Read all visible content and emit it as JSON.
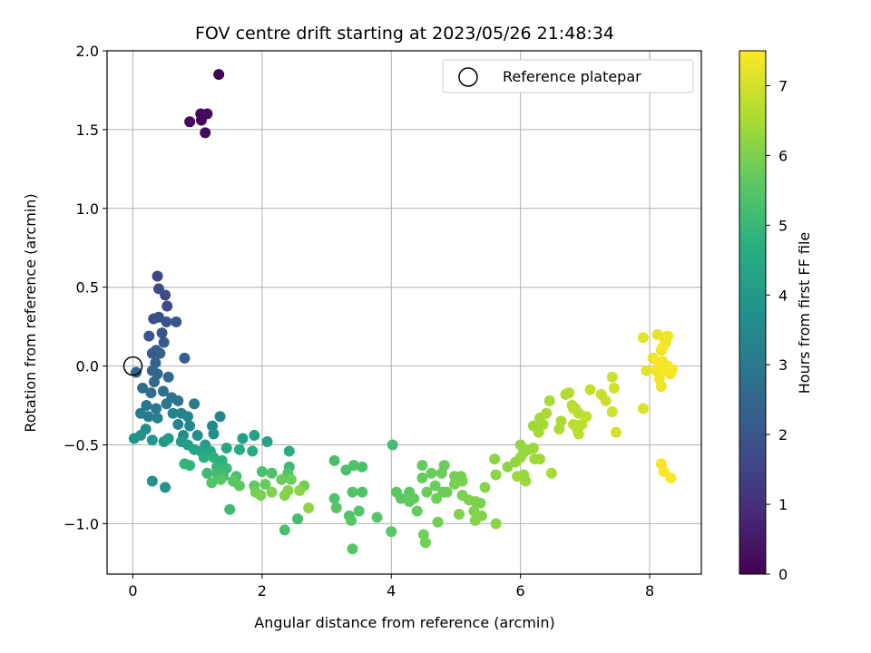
{
  "chart_data": {
    "type": "scatter",
    "title": "FOV centre drift starting at 2023/05/26 21:48:34",
    "xlabel": "Angular distance from reference (arcmin)",
    "ylabel": "Rotation from reference (arcmin)",
    "xlim": [
      -0.4,
      8.8
    ],
    "ylim": [
      -1.32,
      2.0
    ],
    "xticks": [
      "0",
      "2",
      "4",
      "6",
      "8"
    ],
    "xtick_values": [
      0,
      2,
      4,
      6,
      8
    ],
    "yticks": [
      "−1.0",
      "−0.5",
      "0.0",
      "0.5",
      "1.0",
      "1.5",
      "2.0"
    ],
    "ytick_values": [
      -1.0,
      -0.5,
      0.0,
      0.5,
      1.0,
      1.5,
      2.0
    ],
    "grid": true,
    "colormap": "viridis",
    "colorbar": {
      "label": "Hours from first FF file",
      "range": [
        0,
        7.5
      ],
      "ticks": [
        "0",
        "1",
        "2",
        "3",
        "4",
        "5",
        "6",
        "7"
      ],
      "tick_values": [
        0,
        1,
        2,
        3,
        4,
        5,
        6,
        7
      ]
    },
    "legend": {
      "placement": "top-right",
      "entries": [
        "Reference platepar"
      ]
    },
    "reference_point": {
      "x": 0.0,
      "y": 0.0
    },
    "points": [
      [
        1.33,
        1.85,
        0.05
      ],
      [
        0.88,
        1.55,
        0.15
      ],
      [
        1.05,
        1.6,
        0.2
      ],
      [
        1.15,
        1.6,
        0.22
      ],
      [
        1.12,
        1.48,
        0.25
      ],
      [
        1.06,
        1.56,
        0.18
      ],
      [
        0.38,
        0.57,
        1.6
      ],
      [
        0.5,
        0.45,
        1.65
      ],
      [
        0.4,
        0.49,
        1.7
      ],
      [
        0.53,
        0.38,
        1.75
      ],
      [
        0.32,
        0.3,
        1.8
      ],
      [
        0.4,
        0.31,
        1.85
      ],
      [
        0.52,
        0.28,
        1.9
      ],
      [
        0.67,
        0.28,
        1.95
      ],
      [
        0.25,
        0.19,
        2.0
      ],
      [
        0.45,
        0.21,
        2.05
      ],
      [
        0.48,
        0.15,
        2.1
      ],
      [
        0.3,
        0.08,
        2.15
      ],
      [
        0.36,
        0.1,
        2.2
      ],
      [
        0.42,
        0.08,
        2.25
      ],
      [
        0.8,
        0.05,
        2.3
      ],
      [
        0.35,
        0.02,
        2.35
      ],
      [
        0.3,
        -0.03,
        2.4
      ],
      [
        0.38,
        -0.05,
        2.45
      ],
      [
        0.05,
        -0.04,
        2.5
      ],
      [
        0.55,
        -0.07,
        2.55
      ],
      [
        0.33,
        -0.1,
        2.6
      ],
      [
        0.15,
        -0.14,
        2.65
      ],
      [
        0.28,
        -0.17,
        2.7
      ],
      [
        0.47,
        -0.16,
        2.75
      ],
      [
        0.6,
        -0.2,
        2.8
      ],
      [
        0.7,
        -0.22,
        2.85
      ],
      [
        0.21,
        -0.25,
        2.9
      ],
      [
        0.36,
        -0.27,
        2.95
      ],
      [
        0.52,
        -0.24,
        3.0
      ],
      [
        0.95,
        -0.24,
        3.05
      ],
      [
        0.12,
        -0.3,
        3.1
      ],
      [
        0.24,
        -0.32,
        3.15
      ],
      [
        0.38,
        -0.33,
        3.2
      ],
      [
        0.62,
        -0.3,
        3.25
      ],
      [
        0.75,
        -0.3,
        3.3
      ],
      [
        0.85,
        -0.32,
        3.35
      ],
      [
        1.35,
        -0.32,
        3.4
      ],
      [
        0.7,
        -0.37,
        3.45
      ],
      [
        0.88,
        -0.38,
        3.5
      ],
      [
        1.23,
        -0.38,
        3.55
      ],
      [
        0.2,
        -0.4,
        3.6
      ],
      [
        0.78,
        -0.44,
        3.65
      ],
      [
        1.0,
        -0.44,
        3.7
      ],
      [
        1.25,
        -0.43,
        3.75
      ],
      [
        0.02,
        -0.46,
        3.8
      ],
      [
        0.12,
        -0.44,
        3.85
      ],
      [
        0.3,
        -0.47,
        3.9
      ],
      [
        0.48,
        -0.48,
        3.95
      ],
      [
        0.55,
        -0.46,
        4.0
      ],
      [
        0.75,
        -0.48,
        4.05
      ],
      [
        0.85,
        -0.5,
        4.1
      ],
      [
        1.12,
        -0.5,
        4.15
      ],
      [
        1.7,
        -0.46,
        4.2
      ],
      [
        1.88,
        -0.44,
        4.25
      ],
      [
        2.08,
        -0.48,
        4.3
      ],
      [
        0.95,
        -0.53,
        4.35
      ],
      [
        1.05,
        -0.54,
        4.4
      ],
      [
        1.2,
        -0.54,
        4.45
      ],
      [
        1.45,
        -0.52,
        4.5
      ],
      [
        1.65,
        -0.53,
        4.55
      ],
      [
        1.85,
        -0.54,
        4.6
      ],
      [
        2.42,
        -0.54,
        4.65
      ],
      [
        1.1,
        -0.58,
        4.7
      ],
      [
        1.25,
        -0.58,
        4.75
      ],
      [
        1.38,
        -0.6,
        4.8
      ],
      [
        0.8,
        -0.62,
        4.85
      ],
      [
        0.88,
        -0.63,
        4.9
      ],
      [
        1.3,
        -0.64,
        4.95
      ],
      [
        1.45,
        -0.65,
        5.0
      ],
      [
        2.42,
        -0.64,
        5.05
      ],
      [
        1.15,
        -0.68,
        5.1
      ],
      [
        1.3,
        -0.68,
        5.15
      ],
      [
        1.4,
        -0.7,
        5.2
      ],
      [
        1.6,
        -0.7,
        5.25
      ],
      [
        2.0,
        -0.67,
        5.3
      ],
      [
        2.15,
        -0.68,
        5.35
      ],
      [
        2.4,
        -0.68,
        5.4
      ],
      [
        1.22,
        -0.74,
        5.45
      ],
      [
        1.36,
        -0.72,
        5.5
      ],
      [
        1.55,
        -0.73,
        5.55
      ],
      [
        1.65,
        -0.76,
        5.6
      ],
      [
        1.88,
        -0.76,
        5.65
      ],
      [
        2.05,
        -0.75,
        5.7
      ],
      [
        2.3,
        -0.72,
        5.75
      ],
      [
        2.45,
        -0.72,
        5.8
      ],
      [
        2.65,
        -0.76,
        5.85
      ],
      [
        1.9,
        -0.8,
        5.9
      ],
      [
        1.98,
        -0.82,
        5.95
      ],
      [
        2.15,
        -0.8,
        6.0
      ],
      [
        2.35,
        -0.82,
        6.05
      ],
      [
        2.4,
        -0.79,
        6.1
      ],
      [
        2.58,
        -0.79,
        6.15
      ],
      [
        2.72,
        -0.9,
        6.2
      ],
      [
        0.3,
        -0.73,
        3.75
      ],
      [
        0.5,
        -0.77,
        3.8
      ],
      [
        1.5,
        -0.91,
        5.1
      ],
      [
        2.55,
        -0.97,
        5.2
      ],
      [
        2.35,
        -1.04,
        5.3
      ],
      [
        3.12,
        -0.6,
        5.3
      ],
      [
        3.3,
        -0.66,
        5.3
      ],
      [
        3.42,
        -0.63,
        5.35
      ],
      [
        3.55,
        -0.64,
        5.35
      ],
      [
        3.12,
        -0.84,
        5.4
      ],
      [
        3.4,
        -0.8,
        5.4
      ],
      [
        3.55,
        -0.8,
        5.4
      ],
      [
        3.15,
        -0.9,
        5.45
      ],
      [
        3.35,
        -0.95,
        5.45
      ],
      [
        3.5,
        -0.92,
        5.45
      ],
      [
        3.38,
        -0.98,
        5.5
      ],
      [
        3.78,
        -0.96,
        5.5
      ],
      [
        3.4,
        -1.16,
        5.5
      ],
      [
        4.0,
        -1.05,
        5.55
      ],
      [
        4.02,
        -0.5,
        5.2
      ],
      [
        4.08,
        -0.8,
        5.55
      ],
      [
        4.15,
        -0.84,
        5.6
      ],
      [
        4.28,
        -0.8,
        5.6
      ],
      [
        4.35,
        -0.84,
        5.65
      ],
      [
        4.28,
        -0.86,
        5.65
      ],
      [
        4.4,
        -0.92,
        5.7
      ],
      [
        4.48,
        -0.63,
        5.7
      ],
      [
        4.48,
        -0.71,
        5.7
      ],
      [
        4.62,
        -0.68,
        5.75
      ],
      [
        4.68,
        -0.76,
        5.75
      ],
      [
        4.78,
        -0.68,
        5.75
      ],
      [
        4.82,
        -0.63,
        5.75
      ],
      [
        4.55,
        -0.8,
        5.8
      ],
      [
        4.7,
        -0.84,
        5.8
      ],
      [
        4.8,
        -0.8,
        5.8
      ],
      [
        4.86,
        -0.8,
        5.8
      ],
      [
        4.5,
        -1.07,
        5.85
      ],
      [
        4.53,
        -1.12,
        5.85
      ],
      [
        4.72,
        -0.99,
        5.85
      ],
      [
        4.98,
        -0.7,
        5.9
      ],
      [
        5.08,
        -0.7,
        5.9
      ],
      [
        4.98,
        -0.75,
        5.95
      ],
      [
        5.1,
        -0.73,
        5.95
      ],
      [
        5.1,
        -0.82,
        5.95
      ],
      [
        5.2,
        -0.85,
        6.0
      ],
      [
        5.3,
        -0.86,
        6.0
      ],
      [
        5.38,
        -0.87,
        6.0
      ],
      [
        5.28,
        -0.92,
        6.05
      ],
      [
        5.4,
        -0.95,
        6.05
      ],
      [
        5.05,
        -0.94,
        6.05
      ],
      [
        5.3,
        -0.98,
        6.1
      ],
      [
        5.45,
        -0.77,
        6.1
      ],
      [
        5.6,
        -0.59,
        6.15
      ],
      [
        5.62,
        -0.69,
        6.15
      ],
      [
        5.62,
        -1.0,
        6.15
      ],
      [
        5.8,
        -0.64,
        6.2
      ],
      [
        5.92,
        -0.61,
        6.25
      ],
      [
        6.0,
        -0.5,
        6.25
      ],
      [
        6.0,
        -0.58,
        6.3
      ],
      [
        6.05,
        -0.55,
        6.3
      ],
      [
        6.12,
        -0.53,
        6.35
      ],
      [
        6.2,
        -0.52,
        6.35
      ],
      [
        5.95,
        -0.7,
        6.35
      ],
      [
        6.05,
        -0.69,
        6.35
      ],
      [
        6.08,
        -0.73,
        6.35
      ],
      [
        6.22,
        -0.59,
        6.4
      ],
      [
        6.3,
        -0.59,
        6.4
      ],
      [
        6.2,
        -0.38,
        6.4
      ],
      [
        6.28,
        -0.42,
        6.45
      ],
      [
        6.35,
        -0.37,
        6.45
      ],
      [
        6.3,
        -0.33,
        6.45
      ],
      [
        6.4,
        -0.3,
        6.5
      ],
      [
        6.45,
        -0.22,
        6.5
      ],
      [
        6.48,
        -0.68,
        6.5
      ],
      [
        6.6,
        -0.4,
        6.55
      ],
      [
        6.63,
        -0.35,
        6.55
      ],
      [
        6.7,
        -0.18,
        6.6
      ],
      [
        6.75,
        -0.17,
        6.6
      ],
      [
        6.8,
        -0.25,
        6.65
      ],
      [
        6.85,
        -0.27,
        6.65
      ],
      [
        6.9,
        -0.3,
        6.7
      ],
      [
        6.82,
        -0.37,
        6.7
      ],
      [
        6.88,
        -0.4,
        6.7
      ],
      [
        6.9,
        -0.43,
        6.7
      ],
      [
        6.95,
        -0.37,
        6.75
      ],
      [
        6.82,
        -0.27,
        6.75
      ],
      [
        7.02,
        -0.32,
        6.8
      ],
      [
        7.08,
        -0.15,
        6.8
      ],
      [
        7.25,
        -0.18,
        6.85
      ],
      [
        7.32,
        -0.22,
        6.9
      ],
      [
        7.42,
        -0.07,
        6.9
      ],
      [
        7.45,
        -0.14,
        6.95
      ],
      [
        7.42,
        -0.29,
        6.95
      ],
      [
        7.48,
        -0.42,
        7.0
      ],
      [
        7.9,
        -0.27,
        7.1
      ],
      [
        7.9,
        0.18,
        7.2
      ],
      [
        7.95,
        -0.03,
        7.2
      ],
      [
        8.05,
        0.05,
        7.25
      ],
      [
        8.12,
        0.2,
        7.25
      ],
      [
        8.18,
        0.1,
        7.3
      ],
      [
        8.22,
        0.18,
        7.3
      ],
      [
        8.25,
        0.15,
        7.3
      ],
      [
        8.28,
        0.19,
        7.35
      ],
      [
        8.1,
        -0.03,
        7.35
      ],
      [
        8.15,
        -0.08,
        7.35
      ],
      [
        8.18,
        -0.13,
        7.35
      ],
      [
        8.2,
        0.03,
        7.4
      ],
      [
        8.22,
        -0.03,
        7.4
      ],
      [
        8.28,
        0.0,
        7.4
      ],
      [
        8.32,
        -0.05,
        7.4
      ],
      [
        8.35,
        -0.02,
        7.45
      ],
      [
        8.25,
        -0.03,
        7.45
      ],
      [
        8.18,
        -0.62,
        7.4
      ],
      [
        8.22,
        -0.67,
        7.45
      ],
      [
        8.33,
        -0.71,
        7.45
      ],
      [
        8.12,
        0.03,
        7.45
      ],
      [
        8.2,
        0.12,
        7.45
      ]
    ]
  }
}
